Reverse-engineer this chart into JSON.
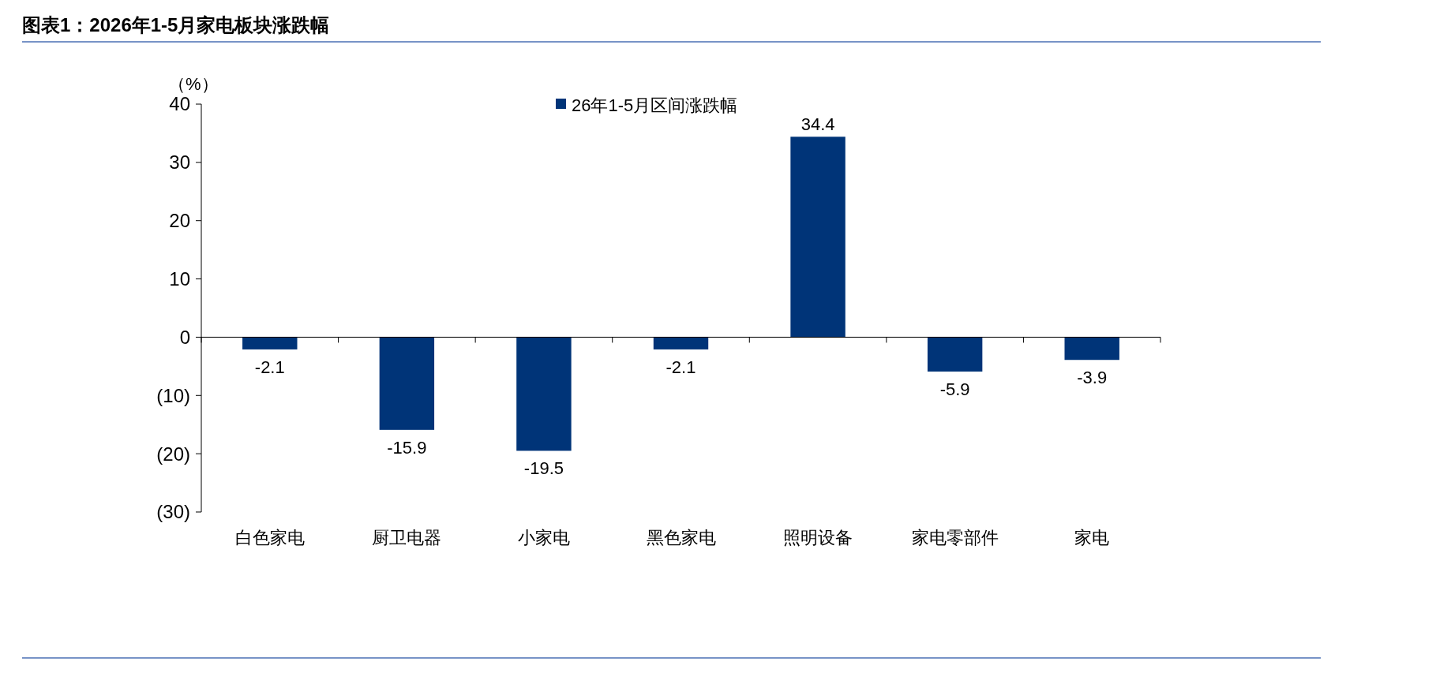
{
  "chart_data": {
    "type": "bar",
    "title": "图表1：2026年1-5月家电板块涨跌幅",
    "ylabel": "（%）",
    "categories": [
      "白色家电",
      "厨卫电器",
      "小家电",
      "黑色家电",
      "照明设备",
      "家电零部件",
      "家电"
    ],
    "series": [
      {
        "name": "26年1-5月区间涨跌幅",
        "color": "#003478",
        "values": [
          -2.1,
          -15.9,
          -19.5,
          -2.1,
          34.4,
          -5.9,
          -3.9
        ]
      }
    ],
    "ylim": [
      -30,
      40
    ],
    "yticks": [
      {
        "value": -30,
        "label": "(30)"
      },
      {
        "value": -20,
        "label": "(20)"
      },
      {
        "value": -10,
        "label": "(10)"
      },
      0,
      10,
      20,
      30,
      40
    ],
    "data_labels": true,
    "legend": "top"
  }
}
